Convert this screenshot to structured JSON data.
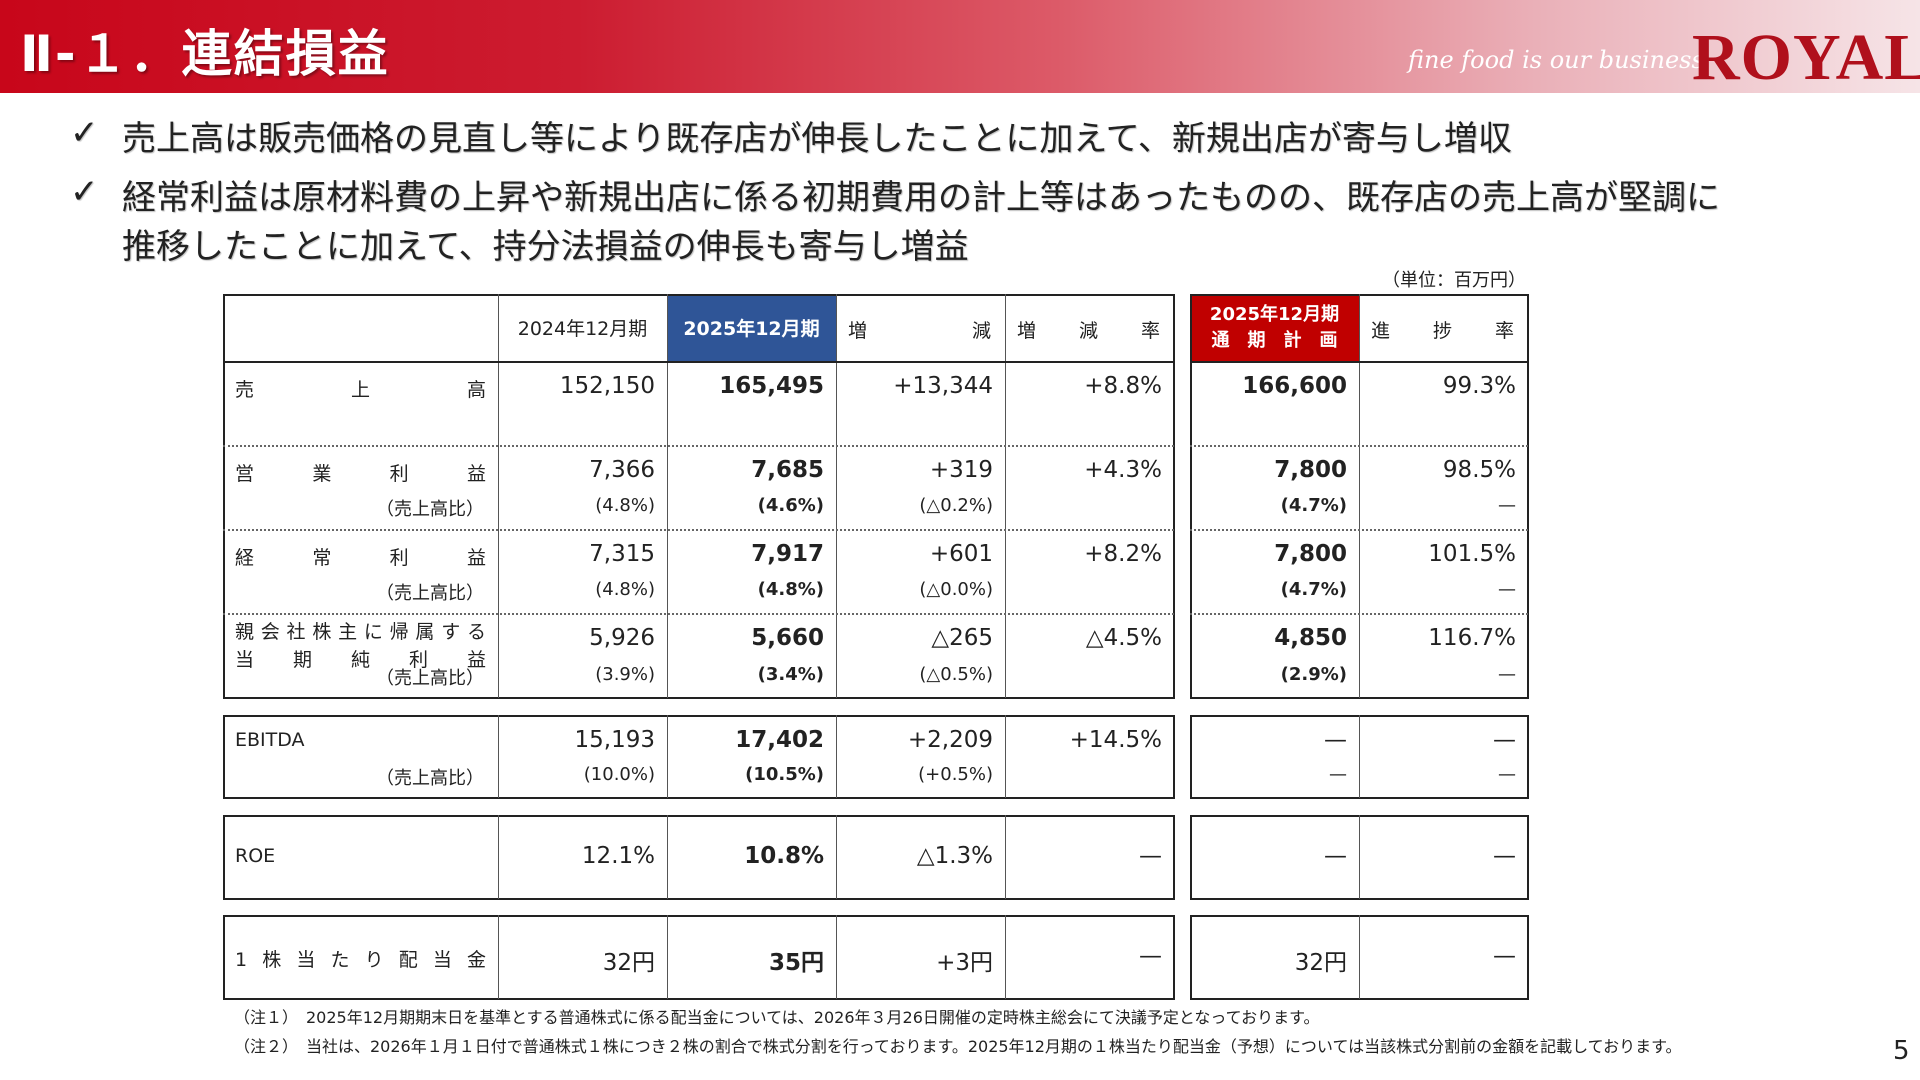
{
  "header": {
    "title": "Ⅱ-１．連結損益",
    "tagline": "fine food is our business",
    "logo": "ROYAL",
    "colors": {
      "banner": "#c8061a",
      "logo": "#b0101c"
    }
  },
  "bullets": [
    {
      "icon": "check-icon",
      "lines": [
        "売上高は販売価格の見直し等により既存店が伸長したことに加えて、新規出店が寄与し増収"
      ]
    },
    {
      "icon": "check-icon",
      "lines": [
        "経常利益は原材料費の上昇や新規出店に係る初期費用の計上等はあったものの、既存店の売上高が堅調に",
        "推移したことに加えて、持分法損益の伸長も寄与し増益"
      ]
    }
  ],
  "unit": "（単位：百万円）",
  "table": {
    "headers": [
      "",
      "2024年12月期",
      "2025年12月期",
      "増　減",
      "増　減　率"
    ],
    "plan_header": [
      "2025年12月期",
      "通　期　計　画"
    ],
    "progress_header": "進　捗　率",
    "colors": {
      "current": "#2f5597",
      "plan": "#c00000"
    },
    "sub_label": "（売上高比）",
    "rows": [
      {
        "label": [
          "売上高"
        ],
        "values": [
          "152,150",
          "165,495",
          "+13,344",
          "+8.8%"
        ],
        "plan": "166,600",
        "progress": "99.3%"
      },
      {
        "label": [
          "営業利益"
        ],
        "values": [
          "7,366",
          "7,685",
          "+319",
          "+4.3%"
        ],
        "plan": "7,800",
        "progress": "98.5%",
        "subs": [
          "(4.8%)",
          "(4.6%)",
          "(△0.2%)",
          ""
        ],
        "plan_sub": "(4.7%)",
        "progress_sub": "—"
      },
      {
        "label": [
          "経常利益"
        ],
        "values": [
          "7,315",
          "7,917",
          "+601",
          "+8.2%"
        ],
        "plan": "7,800",
        "progress": "101.5%",
        "subs": [
          "(4.8%)",
          "(4.8%)",
          "(△0.0%)",
          ""
        ],
        "plan_sub": "(4.7%)",
        "progress_sub": "—"
      },
      {
        "label": [
          "親会社株主に帰属する",
          "当期純利益"
        ],
        "values": [
          "5,926",
          "5,660",
          "△265",
          "△4.5%"
        ],
        "plan": "4,850",
        "progress": "116.7%",
        "subs": [
          "(3.9%)",
          "(3.4%)",
          "(△0.5%)",
          ""
        ],
        "plan_sub": "(2.9%)",
        "progress_sub": "—"
      },
      {
        "label": [
          "EBITDA"
        ],
        "values": [
          "15,193",
          "17,402",
          "+2,209",
          "+14.5%"
        ],
        "plan": "—",
        "progress": "—",
        "subs": [
          "(10.0%)",
          "(10.5%)",
          "(+0.5%)",
          ""
        ],
        "plan_sub": "—",
        "progress_sub": "—"
      },
      {
        "label": [
          "ROE"
        ],
        "values": [
          "12.1%",
          "10.8%",
          "△1.3%",
          "—"
        ],
        "plan": "—",
        "progress": "—"
      },
      {
        "label": [
          "1株当たり配当金"
        ],
        "values": [
          "32円",
          "35円",
          "+3円",
          "—"
        ],
        "plan": "32円",
        "progress": "—"
      }
    ]
  },
  "notes": [
    "（注１）　2025年12月期期末日を基準とする普通株式に係る配当金については、2026年３月26日開催の定時株主総会にて決議予定となっております。",
    "（注２）　当社は、2026年１月１日付で普通株式１株につき２株の割合で株式分割を行っております。2025年12月期の１株当たり配当金（予想）については当該株式分割前の金額を記載しております。"
  ],
  "page_number": "5"
}
